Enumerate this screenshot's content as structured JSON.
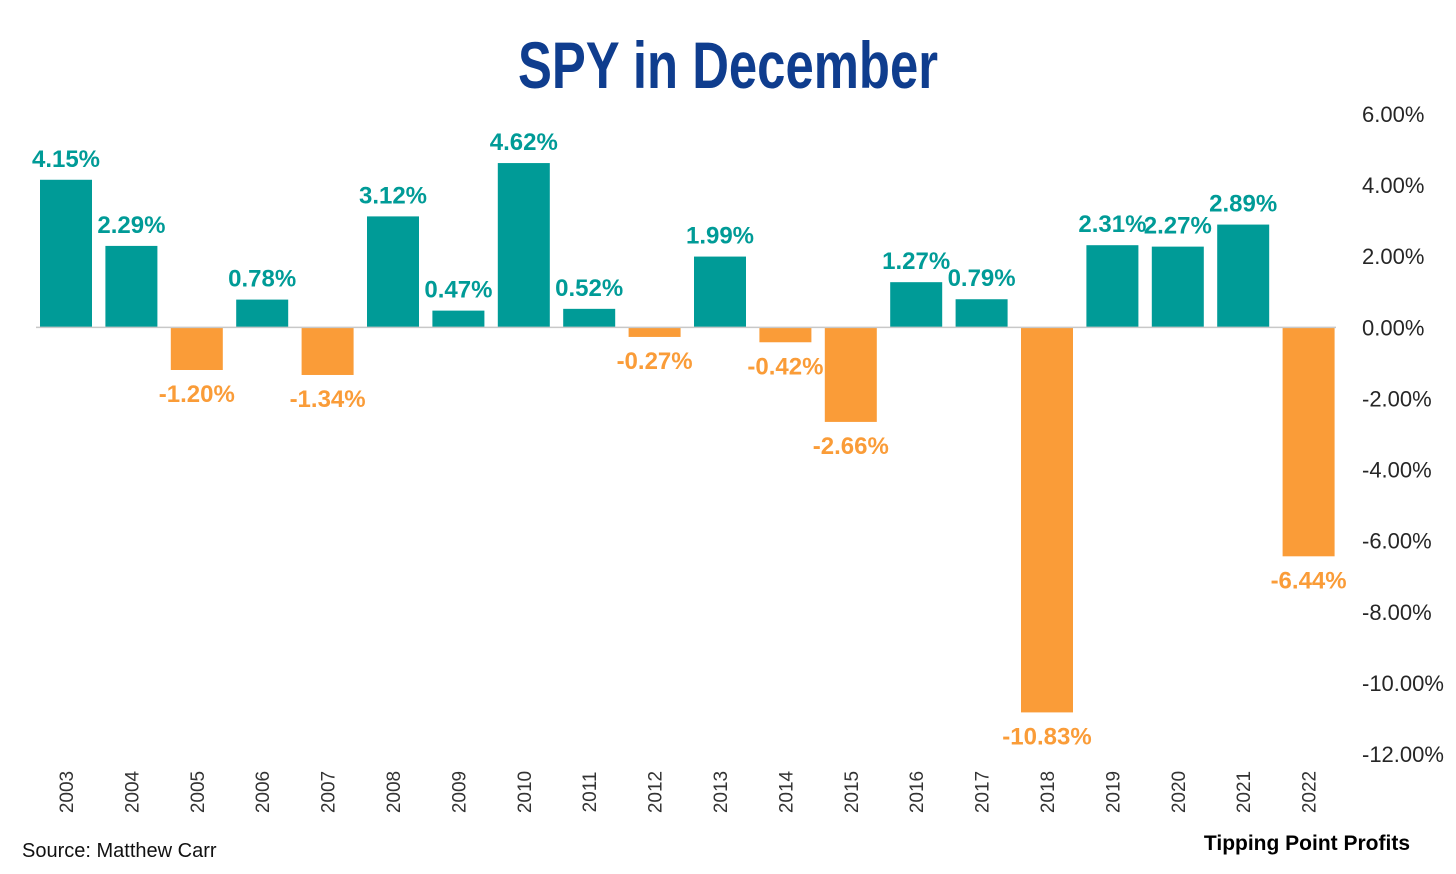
{
  "chart_data": {
    "type": "bar",
    "title": "SPY in December",
    "xlabel": "",
    "ylabel": "",
    "categories": [
      "2003",
      "2004",
      "2005",
      "2006",
      "2007",
      "2008",
      "2009",
      "2010",
      "2011",
      "2012",
      "2013",
      "2014",
      "2015",
      "2016",
      "2017",
      "2018",
      "2019",
      "2020",
      "2021",
      "2022"
    ],
    "values": [
      4.15,
      2.29,
      -1.2,
      0.78,
      -1.34,
      3.12,
      0.47,
      4.62,
      0.52,
      -0.27,
      1.99,
      -0.42,
      -2.66,
      1.27,
      0.79,
      -10.83,
      2.31,
      2.27,
      2.89,
      -6.44
    ],
    "data_labels": [
      "4.15%",
      "2.29%",
      "-1.20%",
      "0.78%",
      "-1.34%",
      "3.12%",
      "0.47%",
      "4.62%",
      "0.52%",
      "-0.27%",
      "1.99%",
      "-0.42%",
      "-2.66%",
      "1.27%",
      "0.79%",
      "-10.83%",
      "2.31%",
      "2.27%",
      "2.89%",
      "-6.44%"
    ],
    "ylim": [
      -12,
      6
    ],
    "yticks": [
      6,
      4,
      2,
      0,
      -2,
      -4,
      -6,
      -8,
      -10,
      -12
    ],
    "ytick_labels": [
      "6.00%",
      "4.00%",
      "2.00%",
      "0.00%",
      "-2.00%",
      "-4.00%",
      "-6.00%",
      "-8.00%",
      "-10.00%",
      "-12.00%"
    ],
    "y_axis_position": "right",
    "grid": false,
    "legend": "none",
    "colors": {
      "positive": "#009b97",
      "negative": "#fa9c38",
      "title": "#0f3d8e"
    }
  },
  "footer": {
    "source": "Source: Matthew Carr",
    "brand": "Tipping Point Profits"
  }
}
